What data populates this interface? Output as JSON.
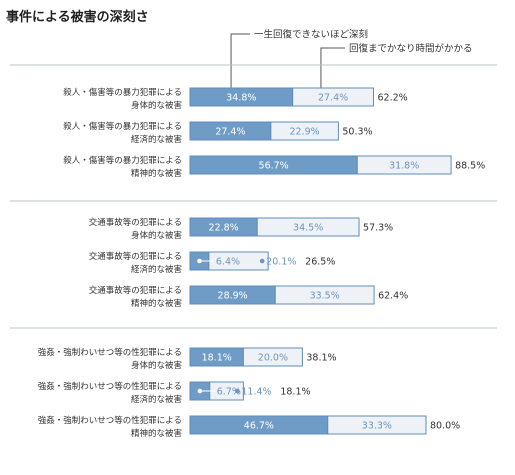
{
  "chart_data": {
    "type": "bar",
    "orientation": "horizontal",
    "stacked": true,
    "title": "事件による被害の深刻さ",
    "legend": [
      {
        "name": "一生回復できないほど深刻",
        "color": "#6f9cc7"
      },
      {
        "name": "回復までかなり時間がかかる",
        "color": "#eef2f6"
      }
    ],
    "groups": [
      {
        "rows": [
          {
            "label": [
              "殺人・傷害等の暴力犯罪による",
              "身体的な被害"
            ],
            "a": 34.8,
            "a_label": "34.8%",
            "b": 27.4,
            "b_label": "27.4%",
            "total_label": "62.2%"
          },
          {
            "label": [
              "殺人・傷害等の暴力犯罪による",
              "経済的な被害"
            ],
            "a": 27.4,
            "a_label": "27.4%",
            "b": 22.9,
            "b_label": "22.9%",
            "total_label": "50.3%"
          },
          {
            "label": [
              "殺人・傷害等の暴力犯罪による",
              "精神的な被害"
            ],
            "a": 56.7,
            "a_label": "56.7%",
            "b": 31.8,
            "b_label": "31.8%",
            "total_label": "88.5%"
          }
        ]
      },
      {
        "rows": [
          {
            "label": [
              "交通事故等の犯罪による",
              "身体的な被害"
            ],
            "a": 22.8,
            "a_label": "22.8%",
            "b": 34.5,
            "b_label": "34.5%",
            "total_label": "57.3%"
          },
          {
            "label": [
              "交通事故等の犯罪による",
              "経済的な被害"
            ],
            "a": 6.4,
            "a_label": "6.4%",
            "b": 20.1,
            "b_label": "20.1%",
            "total_label": "26.5%"
          },
          {
            "label": [
              "交通事故等の犯罪による",
              "精神的な被害"
            ],
            "a": 28.9,
            "a_label": "28.9%",
            "b": 33.5,
            "b_label": "33.5%",
            "total_label": "62.4%"
          }
        ]
      },
      {
        "rows": [
          {
            "label": [
              "強姦・強制わいせつ等の性犯罪による",
              "身体的な被害"
            ],
            "a": 18.1,
            "a_label": "18.1%",
            "b": 20.0,
            "b_label": "20.0%",
            "total_label": "38.1%"
          },
          {
            "label": [
              "強姦・強制わいせつ等の性犯罪による",
              "経済的な被害"
            ],
            "a": 6.7,
            "a_label": "6.7%",
            "b": 11.4,
            "b_label": "11.4%",
            "total_label": "18.1%"
          },
          {
            "label": [
              "強姦・強制わいせつ等の性犯罪による",
              "精神的な被害"
            ],
            "a": 46.7,
            "a_label": "46.7%",
            "b": 33.3,
            "b_label": "33.3%",
            "total_label": "80.0%"
          }
        ]
      }
    ],
    "xlim": [
      0,
      100
    ]
  }
}
